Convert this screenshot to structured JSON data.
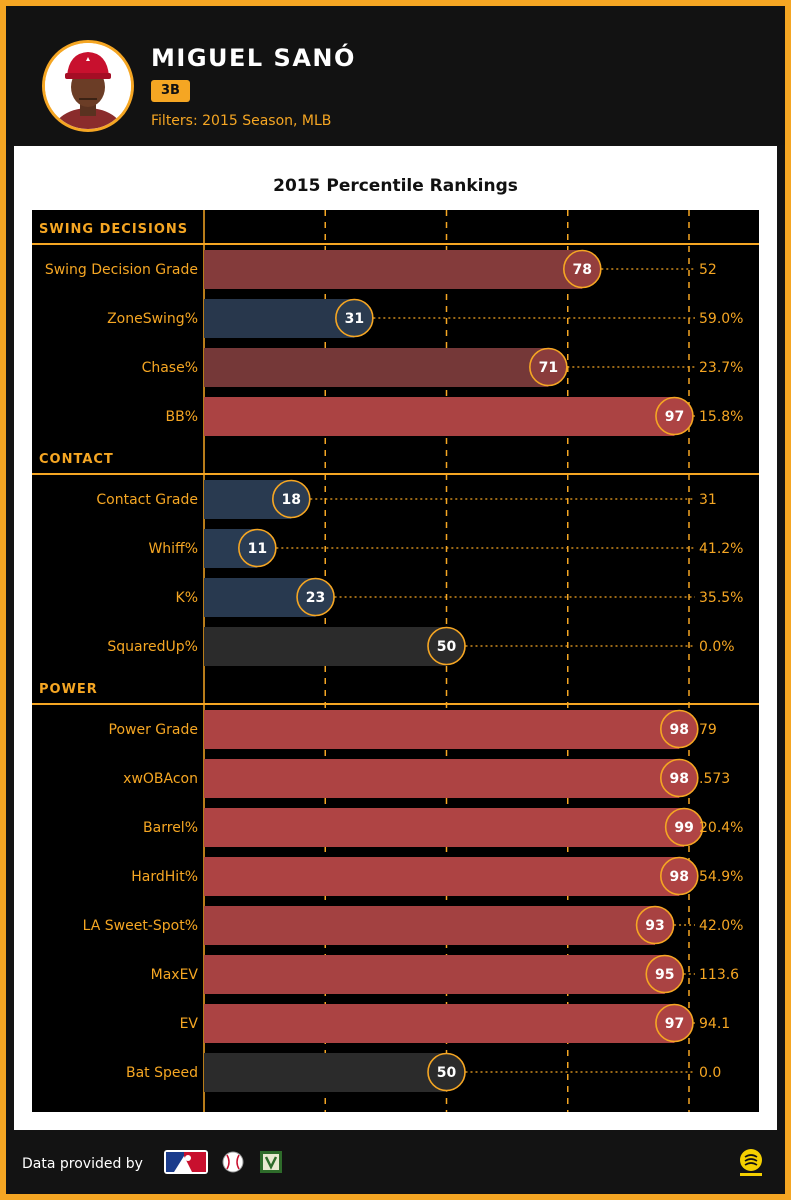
{
  "header": {
    "player_name": "MIGUEL SANÓ",
    "position": "3B",
    "filters": "Filters: 2015 Season, MLB"
  },
  "footer": {
    "data_provided_by": "Data provided by",
    "logos": [
      "mlb-logo-icon",
      "baseball-logo-icon",
      "scoreboard-logo-icon",
      "brand-logo-icon"
    ]
  },
  "colors": {
    "accent": "#f5a623",
    "high": "#b14444",
    "low": "#2a3d55",
    "neutral": "#2b2b2b"
  },
  "chart_data": {
    "type": "bar",
    "title": "2015 Percentile Rankings",
    "xlim": [
      0,
      100
    ],
    "gridlines": [
      0,
      25,
      50,
      75,
      100
    ],
    "sections": [
      {
        "name": "SWING DECISIONS",
        "metrics": [
          {
            "label": "Swing Decision Grade",
            "percentile": 78,
            "value": "52"
          },
          {
            "label": "ZoneSwing%",
            "percentile": 31,
            "value": "59.0%"
          },
          {
            "label": "Chase%",
            "percentile": 71,
            "value": "23.7%"
          },
          {
            "label": "BB%",
            "percentile": 97,
            "value": "15.8%"
          }
        ]
      },
      {
        "name": "CONTACT",
        "metrics": [
          {
            "label": "Contact Grade",
            "percentile": 18,
            "value": "31"
          },
          {
            "label": "Whiff%",
            "percentile": 11,
            "value": "41.2%"
          },
          {
            "label": "K%",
            "percentile": 23,
            "value": "35.5%"
          },
          {
            "label": "SquaredUp%",
            "percentile": 50,
            "value": "0.0%"
          }
        ]
      },
      {
        "name": "POWER",
        "metrics": [
          {
            "label": "Power Grade",
            "percentile": 98,
            "value": "79"
          },
          {
            "label": "xwOBAcon",
            "percentile": 98,
            "value": ".573"
          },
          {
            "label": "Barrel%",
            "percentile": 99,
            "value": "20.4%"
          },
          {
            "label": "HardHit%",
            "percentile": 98,
            "value": "54.9%"
          },
          {
            "label": "LA Sweet-Spot%",
            "percentile": 93,
            "value": "42.0%"
          },
          {
            "label": "MaxEV",
            "percentile": 95,
            "value": "113.6"
          },
          {
            "label": "EV",
            "percentile": 97,
            "value": "94.1"
          },
          {
            "label": "Bat Speed",
            "percentile": 50,
            "value": "0.0"
          }
        ]
      }
    ]
  }
}
